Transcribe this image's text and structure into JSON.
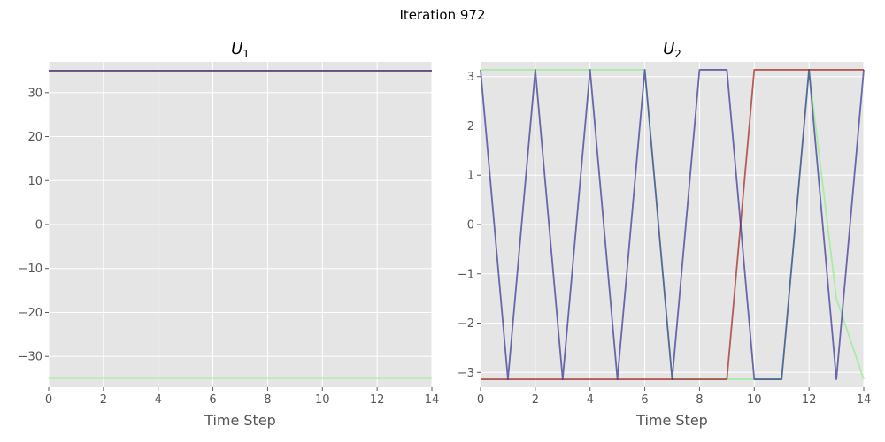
{
  "figure_title": "Iteration 972",
  "colors": {
    "background": "#e5e5e5",
    "grid": "#ffffff",
    "text": "#555555"
  },
  "chart_data": [
    {
      "type": "line",
      "title_main": "U",
      "title_sub": "1",
      "xlabel": "Time Step",
      "ylabel": "",
      "xlim": [
        0,
        14
      ],
      "ylim": [
        -37,
        37
      ],
      "xticks": [
        0,
        2,
        4,
        6,
        8,
        10,
        12,
        14
      ],
      "yticks": [
        -30,
        -20,
        -10,
        0,
        10,
        20,
        30
      ],
      "ytick_labels": [
        "−30",
        "−20",
        "−10",
        "0",
        "10",
        "20",
        "30"
      ],
      "grid": true,
      "series": [
        {
          "color": "#aaf0aa",
          "x": [
            0,
            14
          ],
          "y": [
            -35,
            -35
          ]
        },
        {
          "color": "#b04040",
          "x": [
            0,
            14
          ],
          "y": [
            35,
            35
          ]
        },
        {
          "color": "#404088",
          "x": [
            0,
            14
          ],
          "y": [
            35,
            35
          ]
        }
      ]
    },
    {
      "type": "line",
      "title_main": "U",
      "title_sub": "2",
      "xlabel": "Time Step",
      "ylabel": "",
      "xlim": [
        0,
        14
      ],
      "ylim": [
        -3.3,
        3.3
      ],
      "xticks": [
        0,
        2,
        4,
        6,
        8,
        10,
        12,
        14
      ],
      "yticks": [
        -3,
        -2,
        -1,
        0,
        1,
        2,
        3
      ],
      "ytick_labels": [
        "−3",
        "−2",
        "−1",
        "0",
        "1",
        "2",
        "3"
      ],
      "grid": true,
      "series": [
        {
          "color": "#90ee90",
          "x": [
            0,
            1,
            2,
            3,
            4,
            5,
            6,
            7,
            8,
            9,
            10,
            11,
            12,
            13,
            14
          ],
          "y": [
            3.14,
            3.14,
            3.14,
            3.14,
            3.14,
            3.14,
            3.14,
            -3.14,
            -3.14,
            -3.14,
            -3.14,
            -3.14,
            3.14,
            -1.5,
            -3.14
          ]
        },
        {
          "color": "#a02020",
          "x": [
            0,
            1,
            2,
            3,
            4,
            5,
            6,
            7,
            8,
            9,
            10,
            11,
            12,
            13,
            14
          ],
          "y": [
            -3.14,
            -3.14,
            -3.14,
            -3.14,
            -3.14,
            -3.14,
            -3.14,
            -3.14,
            -3.14,
            -3.14,
            3.14,
            3.14,
            3.14,
            3.14,
            3.14
          ]
        },
        {
          "color": "#303090",
          "x": [
            0,
            1,
            2,
            3,
            4,
            5,
            6,
            7,
            8,
            9,
            10,
            11,
            12,
            13,
            14
          ],
          "y": [
            3.14,
            -3.14,
            3.14,
            -3.14,
            3.14,
            -3.14,
            3.14,
            -3.14,
            3.14,
            3.14,
            -3.14,
            -3.14,
            3.14,
            -3.14,
            3.14
          ]
        }
      ]
    }
  ]
}
